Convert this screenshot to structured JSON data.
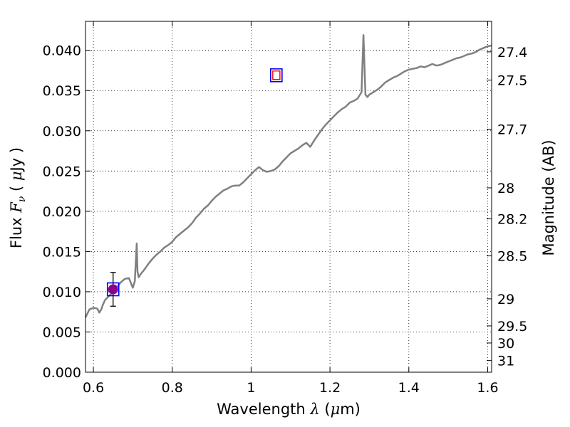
{
  "chart_data": {
    "type": "line",
    "xlabel_prefix": "Wavelength  ",
    "xlabel_symbol": "λ",
    "xlabel_unit_open": " (",
    "xlabel_unit_mu": "μ",
    "xlabel_unit_rest": "m)",
    "ylabel_prefix": "Flux  ",
    "ylabel_symbol": "F",
    "ylabel_subscript": "ν",
    "ylabel_unit_open": "  ( ",
    "ylabel_unit_mu": "μ",
    "ylabel_unit_rest": "Jy )",
    "y2label": "Magnitude (AB)",
    "xlim": [
      0.58,
      1.61
    ],
    "ylim": [
      0.0,
      0.0436
    ],
    "x_ticks": [
      0.6,
      0.8,
      1.0,
      1.2,
      1.4,
      1.6
    ],
    "x_tick_labels": [
      "0.6",
      "0.8",
      "1",
      "1.2",
      "1.4",
      "1.6"
    ],
    "y_ticks": [
      0.0,
      0.005,
      0.01,
      0.015,
      0.02,
      0.025,
      0.03,
      0.035,
      0.04
    ],
    "y_tick_labels": [
      "0.000",
      "0.005",
      "0.010",
      "0.015",
      "0.020",
      "0.025",
      "0.030",
      "0.035",
      "0.040"
    ],
    "y2_ticks": [
      27.4,
      27.5,
      27.7,
      28.0,
      28.2,
      28.5,
      29.0,
      29.5,
      30.0,
      31.0
    ],
    "y2_tick_labels": [
      "27.4",
      "27.5",
      "27.7",
      "28",
      "28.2",
      "28.5",
      "29",
      "29.5",
      "30",
      "31"
    ],
    "grid": true,
    "colors": {
      "spectrum": "#808080",
      "filter_box": "#0000ff",
      "model_point": "#ff0000",
      "observed_point": "#8b008b",
      "error_bar": "#000000"
    },
    "series": [
      {
        "kind": "spectrum",
        "x": [
          0.58,
          0.59,
          0.6,
          0.61,
          0.615,
          0.62,
          0.625,
          0.63,
          0.64,
          0.65,
          0.66,
          0.67,
          0.68,
          0.69,
          0.7,
          0.705,
          0.71,
          0.712,
          0.715,
          0.72,
          0.73,
          0.74,
          0.75,
          0.76,
          0.77,
          0.78,
          0.79,
          0.8,
          0.81,
          0.82,
          0.83,
          0.84,
          0.85,
          0.86,
          0.87,
          0.88,
          0.89,
          0.9,
          0.91,
          0.92,
          0.93,
          0.94,
          0.95,
          0.96,
          0.97,
          0.98,
          0.99,
          1.0,
          1.01,
          1.02,
          1.03,
          1.04,
          1.05,
          1.06,
          1.07,
          1.08,
          1.09,
          1.1,
          1.11,
          1.12,
          1.13,
          1.14,
          1.15,
          1.16,
          1.17,
          1.18,
          1.19,
          1.2,
          1.21,
          1.22,
          1.23,
          1.24,
          1.25,
          1.26,
          1.27,
          1.28,
          1.285,
          1.29,
          1.295,
          1.3,
          1.31,
          1.32,
          1.33,
          1.34,
          1.35,
          1.36,
          1.37,
          1.38,
          1.39,
          1.4,
          1.41,
          1.42,
          1.43,
          1.44,
          1.45,
          1.46,
          1.47,
          1.48,
          1.49,
          1.5,
          1.51,
          1.52,
          1.53,
          1.54,
          1.55,
          1.56,
          1.57,
          1.58,
          1.59,
          1.6,
          1.61
        ],
        "y": [
          0.0068,
          0.0078,
          0.008,
          0.0079,
          0.0074,
          0.0078,
          0.0085,
          0.009,
          0.0095,
          0.01,
          0.0106,
          0.0112,
          0.0116,
          0.0117,
          0.0105,
          0.0113,
          0.016,
          0.0125,
          0.0118,
          0.0122,
          0.0128,
          0.0135,
          0.0141,
          0.0146,
          0.015,
          0.0155,
          0.0158,
          0.0162,
          0.0168,
          0.0172,
          0.0176,
          0.018,
          0.0185,
          0.0192,
          0.0197,
          0.0203,
          0.0207,
          0.0213,
          0.0218,
          0.0222,
          0.0226,
          0.0228,
          0.0231,
          0.0232,
          0.0232,
          0.0236,
          0.0241,
          0.0246,
          0.0251,
          0.0255,
          0.0251,
          0.0249,
          0.025,
          0.0252,
          0.0256,
          0.0262,
          0.0267,
          0.0272,
          0.0275,
          0.0278,
          0.0282,
          0.0285,
          0.028,
          0.0288,
          0.0295,
          0.0302,
          0.0308,
          0.0313,
          0.0318,
          0.0323,
          0.0327,
          0.033,
          0.0335,
          0.0337,
          0.034,
          0.0348,
          0.0419,
          0.0345,
          0.0342,
          0.0345,
          0.0348,
          0.0351,
          0.0355,
          0.036,
          0.0363,
          0.0366,
          0.0368,
          0.0371,
          0.0374,
          0.0376,
          0.0377,
          0.0378,
          0.038,
          0.0379,
          0.0381,
          0.0383,
          0.0381,
          0.0382,
          0.0384,
          0.0386,
          0.0388,
          0.039,
          0.0391,
          0.0393,
          0.0395,
          0.0396,
          0.0398,
          0.0401,
          0.0403,
          0.0405,
          0.0406
        ]
      },
      {
        "kind": "filter_band",
        "x": [
          0.65,
          1.064
        ],
        "y": [
          0.0103,
          0.0369
        ]
      },
      {
        "kind": "model_flux",
        "x": [
          1.064
        ],
        "y": [
          0.0369
        ]
      },
      {
        "kind": "observed_flux",
        "x": [
          0.65
        ],
        "y": [
          0.0103
        ],
        "yerr": [
          0.0021
        ]
      }
    ]
  }
}
